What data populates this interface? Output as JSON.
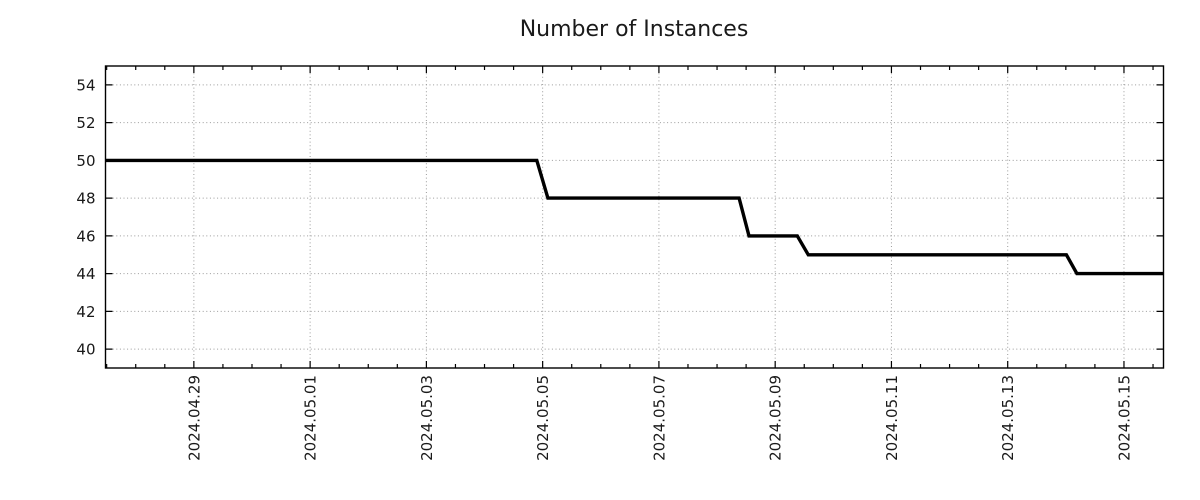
{
  "page": {
    "background": "#ffffff"
  },
  "chart_data": {
    "type": "line",
    "subtype": "step",
    "title": "Number of Instances",
    "title_color": "#1a1a1a",
    "text_color": "#1a1a1a",
    "line_color": "#000000",
    "line_width": 3.4,
    "grid": true,
    "grid_color": "#9b9b9b",
    "axis_color": "#000000",
    "legend": "none",
    "x_axis": {
      "kind": "date",
      "day_zero_label": "2024.04.29",
      "tick_labels": [
        "2024.04.29",
        "2024.05.01",
        "2024.05.03",
        "2024.05.05",
        "2024.05.07",
        "2024.05.09",
        "2024.05.11",
        "2024.05.13",
        "2024.05.15"
      ],
      "tick_label_days": [
        0,
        2,
        4,
        6,
        8,
        10,
        12,
        14,
        16
      ],
      "minor_tick_every_days": 0.5,
      "range_days": [
        -1.52,
        16.68
      ]
    },
    "y_axis": {
      "tick_labels": [
        "54",
        "52",
        "50",
        "48",
        "46",
        "44",
        "42",
        "40"
      ],
      "tick_values": [
        54,
        52,
        50,
        48,
        46,
        44,
        42,
        40
      ],
      "minor_tick_every": 2,
      "range": [
        39,
        55
      ]
    },
    "series": [
      {
        "name": "instances",
        "points_day_value": [
          [
            -1.52,
            50
          ],
          [
            5.9,
            50
          ],
          [
            6.09,
            48
          ],
          [
            9.38,
            48
          ],
          [
            9.55,
            46
          ],
          [
            10.38,
            46
          ],
          [
            10.57,
            45
          ],
          [
            15.01,
            45
          ],
          [
            15.19,
            44
          ],
          [
            16.68,
            44
          ]
        ]
      }
    ]
  }
}
